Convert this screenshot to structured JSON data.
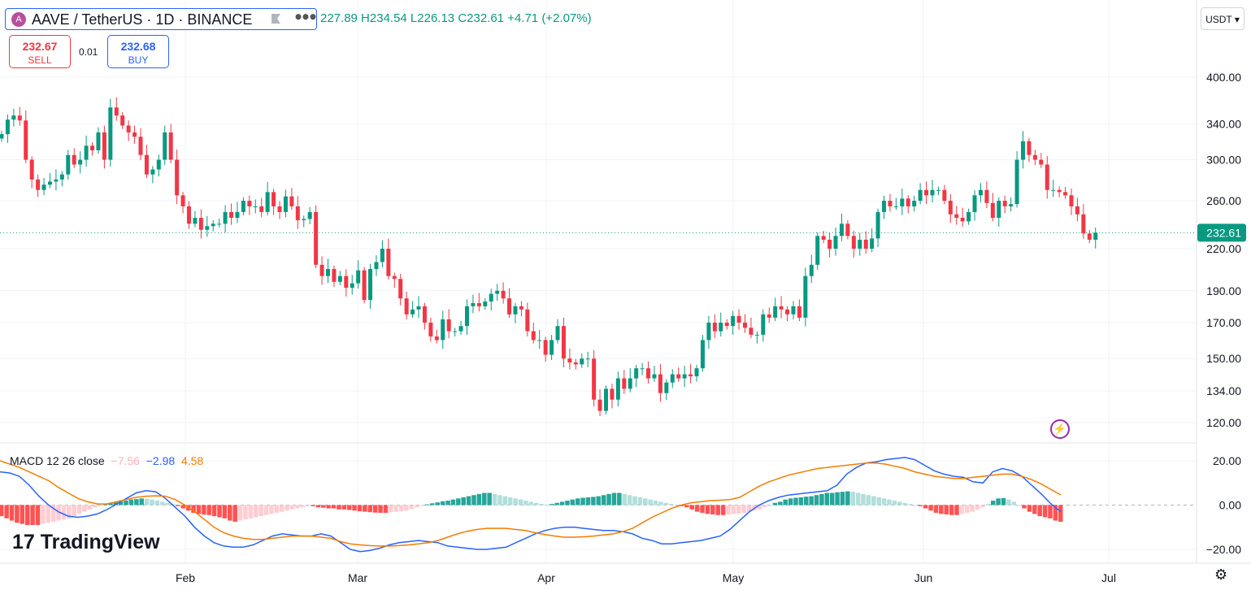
{
  "header": {
    "symbol_title": "AAVE / TetherUS · 1D · BINANCE",
    "ohlc_text": "227.89 H234.54 L226.13 C232.61 +4.71 (+2.07%)",
    "sell_price": "232.67",
    "sell_label": "SELL",
    "spread": "0.01",
    "buy_price": "232.68",
    "buy_label": "BUY",
    "currency": "USDT ▾"
  },
  "macd_legend": {
    "label": "MACD 12 26 close",
    "hist": "−7.56",
    "macd": "−2.98",
    "signal": "4.58"
  },
  "brand": "TradingView",
  "icons": {
    "coin": "aave-coin-icon",
    "flag": "flag-icon",
    "more": "more-icon",
    "flash": "lightning-icon",
    "settings": "gear-icon"
  },
  "colors": {
    "up": "#089981",
    "down": "#f23645",
    "macd": "#2962ff",
    "signal": "#f57c00",
    "accent": "#2962ff"
  },
  "chart_data": [
    {
      "type": "candlestick",
      "title": "AAVE / TetherUS · 1D · BINANCE",
      "scale": "log",
      "y_ticks": [
        120,
        134,
        150,
        170,
        190,
        220,
        260,
        300,
        340,
        400
      ],
      "x_ticks": [
        "Feb",
        "Mar",
        "Apr",
        "May",
        "Jun",
        "Jul"
      ],
      "last_price": 232.61,
      "close": [
        328,
        345,
        350,
        344,
        300,
        280,
        270,
        275,
        278,
        280,
        285,
        305,
        295,
        300,
        315,
        310,
        330,
        300,
        360,
        350,
        338,
        330,
        325,
        305,
        285,
        290,
        300,
        330,
        300,
        265,
        255,
        240,
        245,
        235,
        238,
        240,
        240,
        250,
        245,
        250,
        260,
        255,
        255,
        250,
        268,
        255,
        250,
        264,
        255,
        243,
        244,
        250,
        208,
        200,
        205,
        196,
        200,
        192,
        195,
        204,
        184,
        205,
        210,
        220,
        200,
        198,
        185,
        175,
        178,
        180,
        170,
        162,
        160,
        172,
        165,
        165,
        168,
        180,
        182,
        180,
        183,
        188,
        190,
        185,
        175,
        180,
        178,
        165,
        160,
        160,
        152,
        160,
        168,
        150,
        148,
        147,
        150,
        150,
        130,
        125,
        135,
        130,
        140,
        135,
        140,
        145,
        145,
        140,
        142,
        133,
        138,
        142,
        140,
        142,
        141,
        145,
        160,
        170,
        165,
        170,
        168,
        174,
        170,
        167,
        163,
        163,
        175,
        173,
        180,
        178,
        175,
        180,
        173,
        200,
        208,
        230,
        227,
        220,
        230,
        240,
        230,
        220,
        227,
        220,
        228,
        250,
        260,
        255,
        255,
        262,
        255,
        260,
        270,
        265,
        270,
        270,
        260,
        248,
        245,
        242,
        250,
        265,
        270,
        258,
        245,
        260,
        255,
        257,
        300,
        320,
        305,
        300,
        295,
        270,
        270,
        268,
        265,
        255,
        248,
        232,
        227,
        232.61
      ]
    },
    {
      "type": "line",
      "title": "MACD 12 26 close",
      "y_ticks": [
        -20,
        0,
        20
      ],
      "series": [
        {
          "name": "MACD",
          "color": "#2962ff",
          "values": [
            15,
            14.5,
            13,
            9,
            4,
            0,
            -3,
            -5,
            -5.5,
            -5,
            -4,
            -2,
            0.5,
            3,
            5.5,
            6.5,
            6,
            3,
            -1,
            -5,
            -10,
            -14,
            -17,
            -18.5,
            -19,
            -19,
            -18,
            -16,
            -14,
            -13,
            -13.5,
            -14,
            -14,
            -13,
            -14,
            -17,
            -20,
            -21,
            -20.5,
            -19.5,
            -18,
            -17,
            -16.5,
            -16,
            -16.5,
            -17,
            -18.5,
            -19,
            -19.5,
            -20,
            -20,
            -19.5,
            -19,
            -17,
            -15,
            -13,
            -11.5,
            -10.5,
            -10,
            -10,
            -10.5,
            -11,
            -11.5,
            -11.5,
            -12,
            -13,
            -15,
            -16,
            -17.5,
            -17.5,
            -17,
            -16.5,
            -16,
            -15,
            -14,
            -11,
            -7,
            -3,
            0,
            2,
            3.5,
            4.5,
            5,
            5.5,
            6,
            6.5,
            9,
            14,
            17,
            19,
            19.5,
            20.5,
            21,
            21.5,
            20.5,
            18,
            15.5,
            14,
            13,
            12.5,
            10.5,
            10,
            15,
            16.5,
            15.5,
            13,
            9,
            5,
            0.5,
            -3
          ]
        },
        {
          "name": "Signal",
          "color": "#f57c00",
          "values": [
            20,
            18.5,
            17,
            15,
            13,
            11,
            8,
            5.5,
            3,
            1.5,
            0.5,
            0.5,
            1.5,
            2.5,
            3.5,
            4,
            4.2,
            4,
            2.5,
            0,
            -3,
            -6.5,
            -10,
            -12.5,
            -14,
            -15,
            -15.5,
            -15.5,
            -15,
            -14.5,
            -14,
            -14,
            -14,
            -14.5,
            -15,
            -16.5,
            -17.5,
            -18,
            -18.3,
            -18.5,
            -18.5,
            -18.3,
            -18,
            -17.5,
            -17,
            -16,
            -14.5,
            -13,
            -11.8,
            -11,
            -10.5,
            -10.5,
            -10.5,
            -11,
            -11.5,
            -12.5,
            -13.3,
            -14,
            -14.5,
            -14.5,
            -14.3,
            -14,
            -13.5,
            -13,
            -12,
            -10.5,
            -8,
            -5.5,
            -3.5,
            -1.5,
            0,
            1,
            1.5,
            2,
            2.2,
            2.5,
            3.5,
            6,
            8.5,
            10.5,
            12,
            13.5,
            14.5,
            15.5,
            16.5,
            17,
            17.5,
            18,
            18.5,
            19,
            19,
            18.5,
            17.5,
            16.5,
            15,
            14,
            13,
            12.5,
            12,
            12,
            12.5,
            13,
            13.5,
            14,
            14,
            13,
            11.5,
            9.5,
            7,
            4.58
          ]
        }
      ],
      "histogram": [
        -5,
        -6,
        -7,
        -8,
        -8.5,
        -9,
        -9,
        -9,
        -8.5,
        -8,
        -7.5,
        -7,
        -6.5,
        -6,
        -5,
        -4,
        -3,
        -2,
        -1,
        0,
        0.5,
        1,
        1.2,
        1.5,
        2,
        2.5,
        2.7,
        3,
        2.8,
        2.5,
        2,
        1.5,
        1,
        0.5,
        -0.5,
        -1.5,
        -2.5,
        -3.5,
        -4,
        -4.3,
        -4.5,
        -5,
        -5.5,
        -6,
        -7,
        -7.5,
        -7,
        -6.5,
        -6,
        -5.5,
        -5,
        -4.5,
        -4,
        -3.5,
        -3,
        -2.5,
        -2,
        -1.5,
        -1,
        -0.5,
        -0.5,
        -1,
        -1.2,
        -1.5,
        -1.5,
        -2,
        -2,
        -2.2,
        -2.5,
        -2.8,
        -3,
        -3.2,
        -3.4,
        -3.5,
        -3.5,
        -3.2,
        -3,
        -2.8,
        -2.5,
        -1.8,
        -1,
        -0.3,
        0.3,
        0.8,
        1.2,
        1.7,
        2,
        2.5,
        3,
        3.5,
        4,
        4.5,
        5,
        5.5,
        5.5,
        5,
        4.5,
        4,
        3.5,
        3,
        2.5,
        2,
        1.5,
        1,
        0.5,
        0.2,
        0.5,
        1,
        1.5,
        2,
        2.5,
        3,
        3.3,
        3.5,
        3.7,
        4,
        4.5,
        5,
        5.5,
        5.5,
        5,
        4.5,
        4,
        3.5,
        3,
        2.5,
        2,
        1.5,
        1,
        0.5,
        0,
        -0.5,
        -1,
        -2,
        -3,
        -3.5,
        -4,
        -4.2,
        -4.5,
        -4.5,
        -4.3,
        -4,
        -3.8,
        -3.5,
        -3,
        -2.5,
        -2,
        -1,
        0,
        1,
        1.5,
        2.5,
        3,
        3.3,
        3.5,
        3.8,
        4,
        4.5,
        5,
        5.5,
        5.5,
        5.8,
        6,
        6.2,
        6,
        5.5,
        5,
        4.5,
        4,
        3.5,
        3,
        2.5,
        2,
        1.5,
        1,
        0.5,
        0,
        -0.5,
        -1.5,
        -2.5,
        -3.5,
        -4,
        -4.2,
        -4.5,
        -4.5,
        -4,
        -3.5,
        -3,
        -2,
        -1,
        0.5,
        2,
        3,
        3.2,
        2.5,
        1.5,
        0,
        -1.5,
        -3,
        -4,
        -5,
        -5.5,
        -6,
        -7,
        -7.56
      ]
    }
  ]
}
